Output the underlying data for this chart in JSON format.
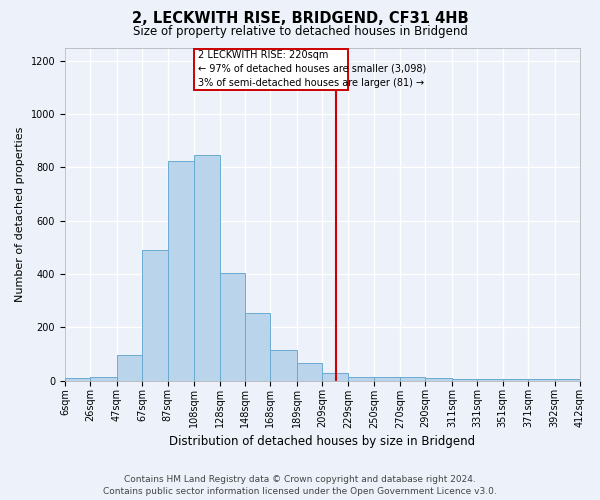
{
  "title": "2, LECKWITH RISE, BRIDGEND, CF31 4HB",
  "subtitle": "Size of property relative to detached houses in Bridgend",
  "xlabel": "Distribution of detached houses by size in Bridgend",
  "ylabel": "Number of detached properties",
  "footer_line1": "Contains HM Land Registry data © Crown copyright and database right 2024.",
  "footer_line2": "Contains public sector information licensed under the Open Government Licence v3.0.",
  "bin_edges": [
    6,
    26,
    47,
    67,
    87,
    108,
    128,
    148,
    168,
    189,
    209,
    229,
    250,
    270,
    290,
    311,
    331,
    351,
    371,
    392,
    412
  ],
  "bin_labels": [
    "6sqm",
    "26sqm",
    "47sqm",
    "67sqm",
    "87sqm",
    "108sqm",
    "128sqm",
    "148sqm",
    "168sqm",
    "189sqm",
    "209sqm",
    "229sqm",
    "250sqm",
    "270sqm",
    "290sqm",
    "311sqm",
    "331sqm",
    "351sqm",
    "371sqm",
    "392sqm",
    "412sqm"
  ],
  "counts": [
    10,
    12,
    95,
    490,
    825,
    845,
    405,
    255,
    115,
    65,
    30,
    15,
    15,
    12,
    10,
    5,
    5,
    5,
    5,
    5
  ],
  "bar_fill": "#bad4ec",
  "bar_edge": "#6aabd2",
  "vline_x": 220,
  "vline_color": "#cc0000",
  "ann_line1": "2 LECKWITH RISE: 220sqm",
  "ann_line2": "← 97% of detached houses are smaller (3,098)",
  "ann_line3": "3% of semi-detached houses are larger (81) →",
  "ann_box_edge": "#cc0000",
  "ann_box_face": "#ffffff",
  "ylim": [
    0,
    1250
  ],
  "yticks": [
    0,
    200,
    400,
    600,
    800,
    1000,
    1200
  ],
  "bg_color": "#edf2fa",
  "grid_color": "#ffffff",
  "title_fontsize": 10.5,
  "subtitle_fontsize": 8.5,
  "ylabel_fontsize": 8,
  "xlabel_fontsize": 8.5,
  "tick_fontsize": 7,
  "ann_fontsize": 7,
  "footer_fontsize": 6.5
}
